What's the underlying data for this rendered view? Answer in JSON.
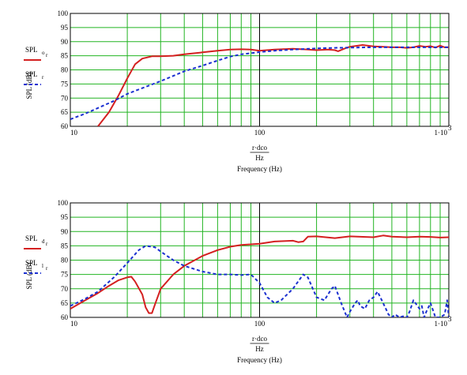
{
  "chart_data": [
    {
      "type": "line",
      "title": "",
      "xscale": "log",
      "xlim": [
        10,
        1000
      ],
      "ylim": [
        60,
        100
      ],
      "yticks": [
        60,
        65,
        70,
        75,
        80,
        85,
        90,
        95,
        100
      ],
      "xtick_labels": [
        {
          "value": 10,
          "label": "10"
        },
        {
          "value": 100,
          "label": "100"
        },
        {
          "value": 1000,
          "label": "1·10"
        }
      ],
      "xtick_exponent": "3",
      "grid": true,
      "ylabel": "SPL (dB)",
      "xlabel_top": "r·dco",
      "xlabel_unit": "Hz",
      "xlabel": "Frequency (Hz)",
      "legend_placement": "left",
      "series": [
        {
          "name": "SPL",
          "name_sub": "o",
          "name_subsub": "r",
          "color": "#d42020",
          "style": "solid",
          "x": [
            14,
            16,
            18,
            20,
            22,
            24,
            27,
            30,
            35,
            40,
            50,
            60,
            70,
            80,
            90,
            100,
            120,
            150,
            180,
            200,
            230,
            250,
            260,
            280,
            300,
            350,
            400,
            450,
            500,
            550,
            600,
            650,
            700,
            750,
            800,
            850,
            900,
            950,
            1000
          ],
          "values": [
            60,
            65,
            71,
            77,
            82,
            84,
            84.8,
            84.8,
            85,
            85.5,
            86.2,
            86.8,
            87.2,
            87.3,
            87.2,
            86.8,
            87.2,
            87.5,
            87.2,
            87,
            87.2,
            87,
            86.6,
            87.5,
            88.2,
            88.8,
            88.3,
            88.2,
            88,
            88,
            87.8,
            88,
            88.5,
            88.2,
            88.4,
            87.9,
            88.6,
            88,
            88
          ]
        },
        {
          "name": "SPL",
          "name_sub": "r",
          "color": "#1a2fd0",
          "style": "dashed",
          "x": [
            10,
            12,
            14,
            17,
            20,
            25,
            30,
            40,
            50,
            60,
            70,
            80,
            100,
            120,
            150,
            200,
            250,
            300,
            400,
            500,
            600,
            700,
            800,
            900,
            1000
          ],
          "values": [
            62.5,
            64.5,
            66.5,
            69,
            71.5,
            74,
            76,
            79.5,
            81.5,
            83.3,
            84.7,
            85.5,
            86.3,
            86.8,
            87.2,
            87.6,
            87.8,
            87.9,
            88,
            88,
            88,
            88,
            88,
            88,
            88
          ]
        }
      ]
    },
    {
      "type": "line",
      "title": "",
      "xscale": "log",
      "xlim": [
        10,
        1000
      ],
      "ylim": [
        60,
        100
      ],
      "yticks": [
        60,
        65,
        70,
        75,
        80,
        85,
        90,
        95,
        100
      ],
      "xtick_labels": [
        {
          "value": 10,
          "label": "10"
        },
        {
          "value": 100,
          "label": "100"
        },
        {
          "value": 1000,
          "label": "1·10"
        }
      ],
      "xtick_exponent": "3",
      "grid": true,
      "ylabel": "SPL (dB)",
      "xlabel_top": "r·dco",
      "xlabel_unit": "Hz",
      "xlabel": "Frequency (Hz)",
      "legend_placement": "left",
      "series": [
        {
          "name": "SPL",
          "name_sub": "d",
          "name_subsub": "r",
          "color": "#d42020",
          "style": "solid",
          "x": [
            10,
            12,
            14,
            16,
            18,
            20,
            21,
            22,
            24,
            25,
            26,
            27,
            28,
            30,
            35,
            40,
            50,
            60,
            70,
            80,
            100,
            120,
            150,
            160,
            170,
            180,
            200,
            250,
            300,
            400,
            450,
            500,
            600,
            700,
            800,
            900,
            1000
          ],
          "values": [
            63,
            66,
            68.5,
            71,
            73,
            74,
            74.2,
            72.5,
            68,
            63.5,
            61.5,
            61.5,
            64.5,
            70,
            75,
            78,
            81.5,
            83.5,
            84.7,
            85.3,
            85.7,
            86.5,
            86.8,
            86.3,
            86.5,
            88.2,
            88.3,
            87.7,
            88.3,
            88,
            88.6,
            88.2,
            88,
            88.2,
            88.1,
            87.9,
            88
          ]
        },
        {
          "name": "SPL",
          "name_sub": "l",
          "name_subsub": "r",
          "color": "#1a2fd0",
          "style": "dashed",
          "x": [
            10,
            12,
            14,
            17,
            20,
            23,
            25,
            28,
            30,
            35,
            40,
            50,
            60,
            70,
            80,
            90,
            100,
            110,
            120,
            130,
            150,
            170,
            180,
            200,
            220,
            240,
            250,
            270,
            290,
            300,
            320,
            330,
            340,
            360,
            380,
            400,
            420,
            450,
            480,
            500,
            520,
            550,
            580,
            600,
            620,
            650,
            700,
            720,
            740,
            760,
            800,
            850,
            900,
            950,
            980,
            1000
          ],
          "values": [
            64,
            66.5,
            69,
            74,
            79,
            83.5,
            85,
            84.5,
            83,
            80,
            78,
            76,
            75,
            75,
            74.8,
            75,
            72,
            67,
            65,
            66,
            70,
            75,
            74,
            67,
            66,
            70,
            71,
            65,
            60,
            62,
            65,
            66,
            64,
            63,
            66,
            67,
            69,
            65,
            61,
            60,
            61,
            60,
            60.5,
            60,
            62,
            66,
            63,
            64,
            60,
            62,
            65,
            60,
            60,
            61,
            66,
            60
          ]
        }
      ]
    }
  ]
}
